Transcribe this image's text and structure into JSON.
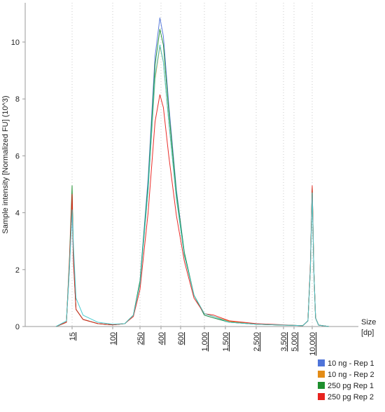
{
  "chart_data": {
    "type": "line",
    "ylabel": "Sample intensity [Normalized FU] (10^3)",
    "xlabel_line1": "Size",
    "xlabel_line2": "[dp]",
    "ylim": [
      0,
      11
    ],
    "y_ticks": [
      0,
      2,
      4,
      6,
      8,
      10
    ],
    "x_ticks": [
      "15",
      "100",
      "250",
      "400",
      "600",
      "1,000",
      "1,500",
      "2,500",
      "3,500",
      "5,000",
      "10,000"
    ],
    "grid": "vertical dotted at x ticks",
    "legend_position": "bottom-right",
    "series": [
      {
        "name": "10 ng - Rep 1",
        "color": "#4f74d9",
        "points": [
          [
            10,
            0
          ],
          [
            13,
            0.15
          ],
          [
            14,
            2.0
          ],
          [
            15,
            4.15
          ],
          [
            16,
            2.2
          ],
          [
            18,
            0.6
          ],
          [
            25,
            0.25
          ],
          [
            50,
            0.1
          ],
          [
            100,
            0.06
          ],
          [
            150,
            0.1
          ],
          [
            200,
            0.4
          ],
          [
            250,
            1.6
          ],
          [
            300,
            5.2
          ],
          [
            350,
            9.5
          ],
          [
            390,
            10.85
          ],
          [
            420,
            10.2
          ],
          [
            470,
            7.8
          ],
          [
            550,
            4.8
          ],
          [
            650,
            2.6
          ],
          [
            800,
            1.1
          ],
          [
            1000,
            0.4
          ],
          [
            1200,
            0.3
          ],
          [
            1600,
            0.15
          ],
          [
            2500,
            0.08
          ],
          [
            3500,
            0.05
          ],
          [
            5000,
            0.04
          ],
          [
            7000,
            0.03
          ],
          [
            8500,
            0.2
          ],
          [
            9300,
            2.0
          ],
          [
            10000,
            4.85
          ],
          [
            10700,
            2.0
          ],
          [
            11500,
            0.3
          ],
          [
            13000,
            0.05
          ],
          [
            20000,
            0
          ]
        ]
      },
      {
        "name": "10 ng - Rep 2",
        "color": "#e38c17",
        "points": [
          [
            10,
            0
          ],
          [
            13,
            0.15
          ],
          [
            14,
            2.1
          ],
          [
            15,
            4.6
          ],
          [
            16,
            2.3
          ],
          [
            18,
            0.6
          ],
          [
            25,
            0.25
          ],
          [
            50,
            0.1
          ],
          [
            100,
            0.06
          ],
          [
            150,
            0.1
          ],
          [
            200,
            0.4
          ],
          [
            250,
            1.5
          ],
          [
            300,
            4.8
          ],
          [
            350,
            8.7
          ],
          [
            390,
            9.85
          ],
          [
            420,
            9.3
          ],
          [
            470,
            7.2
          ],
          [
            550,
            4.5
          ],
          [
            650,
            2.5
          ],
          [
            800,
            1.1
          ],
          [
            1000,
            0.45
          ],
          [
            1200,
            0.35
          ],
          [
            1600,
            0.18
          ],
          [
            2500,
            0.08
          ],
          [
            3500,
            0.05
          ],
          [
            5000,
            0.04
          ],
          [
            7000,
            0.03
          ],
          [
            8500,
            0.2
          ],
          [
            9300,
            2.0
          ],
          [
            10000,
            4.9
          ],
          [
            10700,
            2.0
          ],
          [
            11500,
            0.3
          ],
          [
            13000,
            0.05
          ],
          [
            20000,
            0
          ]
        ]
      },
      {
        "name": "250 pg Rep 1",
        "color": "#1e8f2e",
        "points": [
          [
            10,
            0
          ],
          [
            13,
            0.15
          ],
          [
            14,
            2.3
          ],
          [
            15,
            4.95
          ],
          [
            16,
            2.4
          ],
          [
            18,
            0.6
          ],
          [
            25,
            0.25
          ],
          [
            50,
            0.1
          ],
          [
            100,
            0.06
          ],
          [
            150,
            0.1
          ],
          [
            200,
            0.4
          ],
          [
            250,
            1.6
          ],
          [
            300,
            5.0
          ],
          [
            350,
            9.2
          ],
          [
            390,
            10.45
          ],
          [
            420,
            9.9
          ],
          [
            470,
            7.6
          ],
          [
            550,
            4.7
          ],
          [
            650,
            2.6
          ],
          [
            800,
            1.1
          ],
          [
            1000,
            0.4
          ],
          [
            1200,
            0.3
          ],
          [
            1600,
            0.15
          ],
          [
            2500,
            0.08
          ],
          [
            3500,
            0.05
          ],
          [
            5000,
            0.04
          ],
          [
            7000,
            0.03
          ],
          [
            8500,
            0.2
          ],
          [
            9300,
            2.0
          ],
          [
            10000,
            4.9
          ],
          [
            10700,
            2.0
          ],
          [
            11500,
            0.3
          ],
          [
            13000,
            0.05
          ],
          [
            20000,
            0
          ]
        ]
      },
      {
        "name": "250 pg Rep 2",
        "color": "#e8231f",
        "points": [
          [
            10,
            0
          ],
          [
            13,
            0.15
          ],
          [
            14,
            2.2
          ],
          [
            15,
            4.65
          ],
          [
            16,
            2.3
          ],
          [
            18,
            0.6
          ],
          [
            25,
            0.25
          ],
          [
            50,
            0.1
          ],
          [
            100,
            0.06
          ],
          [
            150,
            0.1
          ],
          [
            200,
            0.35
          ],
          [
            250,
            1.3
          ],
          [
            300,
            4.0
          ],
          [
            350,
            7.2
          ],
          [
            390,
            8.15
          ],
          [
            420,
            7.7
          ],
          [
            470,
            6.0
          ],
          [
            550,
            3.9
          ],
          [
            650,
            2.3
          ],
          [
            800,
            1.0
          ],
          [
            1000,
            0.45
          ],
          [
            1200,
            0.4
          ],
          [
            1600,
            0.2
          ],
          [
            2500,
            0.1
          ],
          [
            3500,
            0.06
          ],
          [
            5000,
            0.04
          ],
          [
            7000,
            0.03
          ],
          [
            8500,
            0.2
          ],
          [
            9300,
            2.1
          ],
          [
            10000,
            4.95
          ],
          [
            10700,
            2.0
          ],
          [
            11500,
            0.3
          ],
          [
            13000,
            0.05
          ],
          [
            20000,
            0
          ]
        ]
      },
      {
        "color": "#3fc9cf",
        "points": [
          [
            10,
            0
          ],
          [
            13,
            0.2
          ],
          [
            14,
            2.0
          ],
          [
            15,
            4.1
          ],
          [
            16,
            2.8
          ],
          [
            18,
            1.0
          ],
          [
            25,
            0.4
          ],
          [
            50,
            0.15
          ],
          [
            100,
            0.08
          ],
          [
            150,
            0.1
          ],
          [
            200,
            0.4
          ],
          [
            250,
            1.5
          ],
          [
            300,
            4.8
          ],
          [
            350,
            8.8
          ],
          [
            390,
            9.9
          ],
          [
            420,
            9.3
          ],
          [
            470,
            7.2
          ],
          [
            550,
            4.5
          ],
          [
            650,
            2.5
          ],
          [
            800,
            1.1
          ],
          [
            1000,
            0.45
          ],
          [
            1200,
            0.35
          ],
          [
            1600,
            0.15
          ],
          [
            2500,
            0.08
          ],
          [
            3500,
            0.05
          ],
          [
            5000,
            0.04
          ],
          [
            7000,
            0.03
          ],
          [
            8500,
            0.2
          ],
          [
            9300,
            2.0
          ],
          [
            10000,
            4.7
          ],
          [
            10700,
            2.0
          ],
          [
            11500,
            0.3
          ],
          [
            13000,
            0.05
          ],
          [
            20000,
            0
          ]
        ]
      }
    ]
  }
}
